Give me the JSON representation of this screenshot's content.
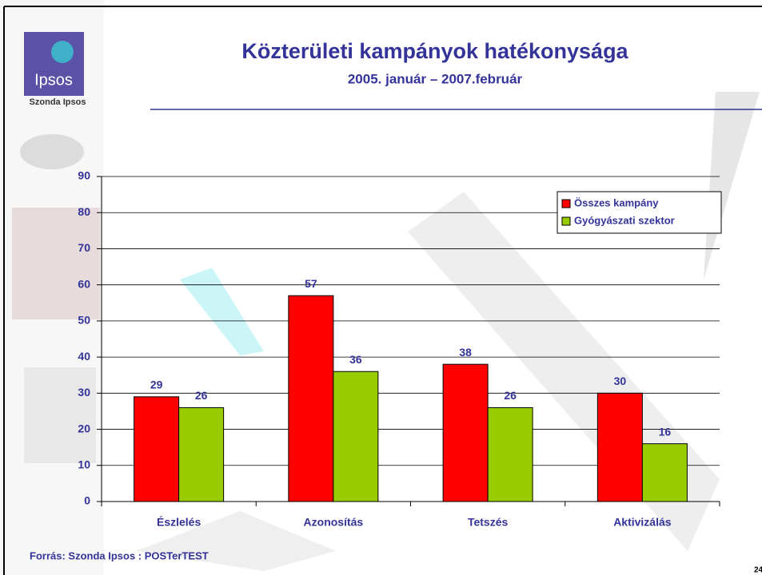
{
  "chart_data": {
    "type": "bar",
    "title": "Közterületi kampányok hatékonysága",
    "subtitle": "2005. január – 2007.február",
    "categories": [
      "Észlelés",
      "Azonosítás",
      "Tetszés",
      "Aktivizálás"
    ],
    "series": [
      {
        "name": "Összes kampány",
        "color": "#ff0000",
        "values": [
          29,
          57,
          38,
          30
        ]
      },
      {
        "name": "Gyógyászati szektor",
        "color": "#99cc00",
        "values": [
          26,
          36,
          26,
          16
        ]
      }
    ],
    "ylim": [
      0,
      90
    ],
    "yticks": [
      0,
      10,
      20,
      30,
      40,
      50,
      60,
      70,
      80,
      90
    ],
    "grid": true,
    "legend": "top-right"
  },
  "logo": {
    "brand": "Ipsos",
    "caption": "Szonda Ipsos"
  },
  "source": "Forrás: Szonda Ipsos : POSTerTEST",
  "page_number": "24"
}
